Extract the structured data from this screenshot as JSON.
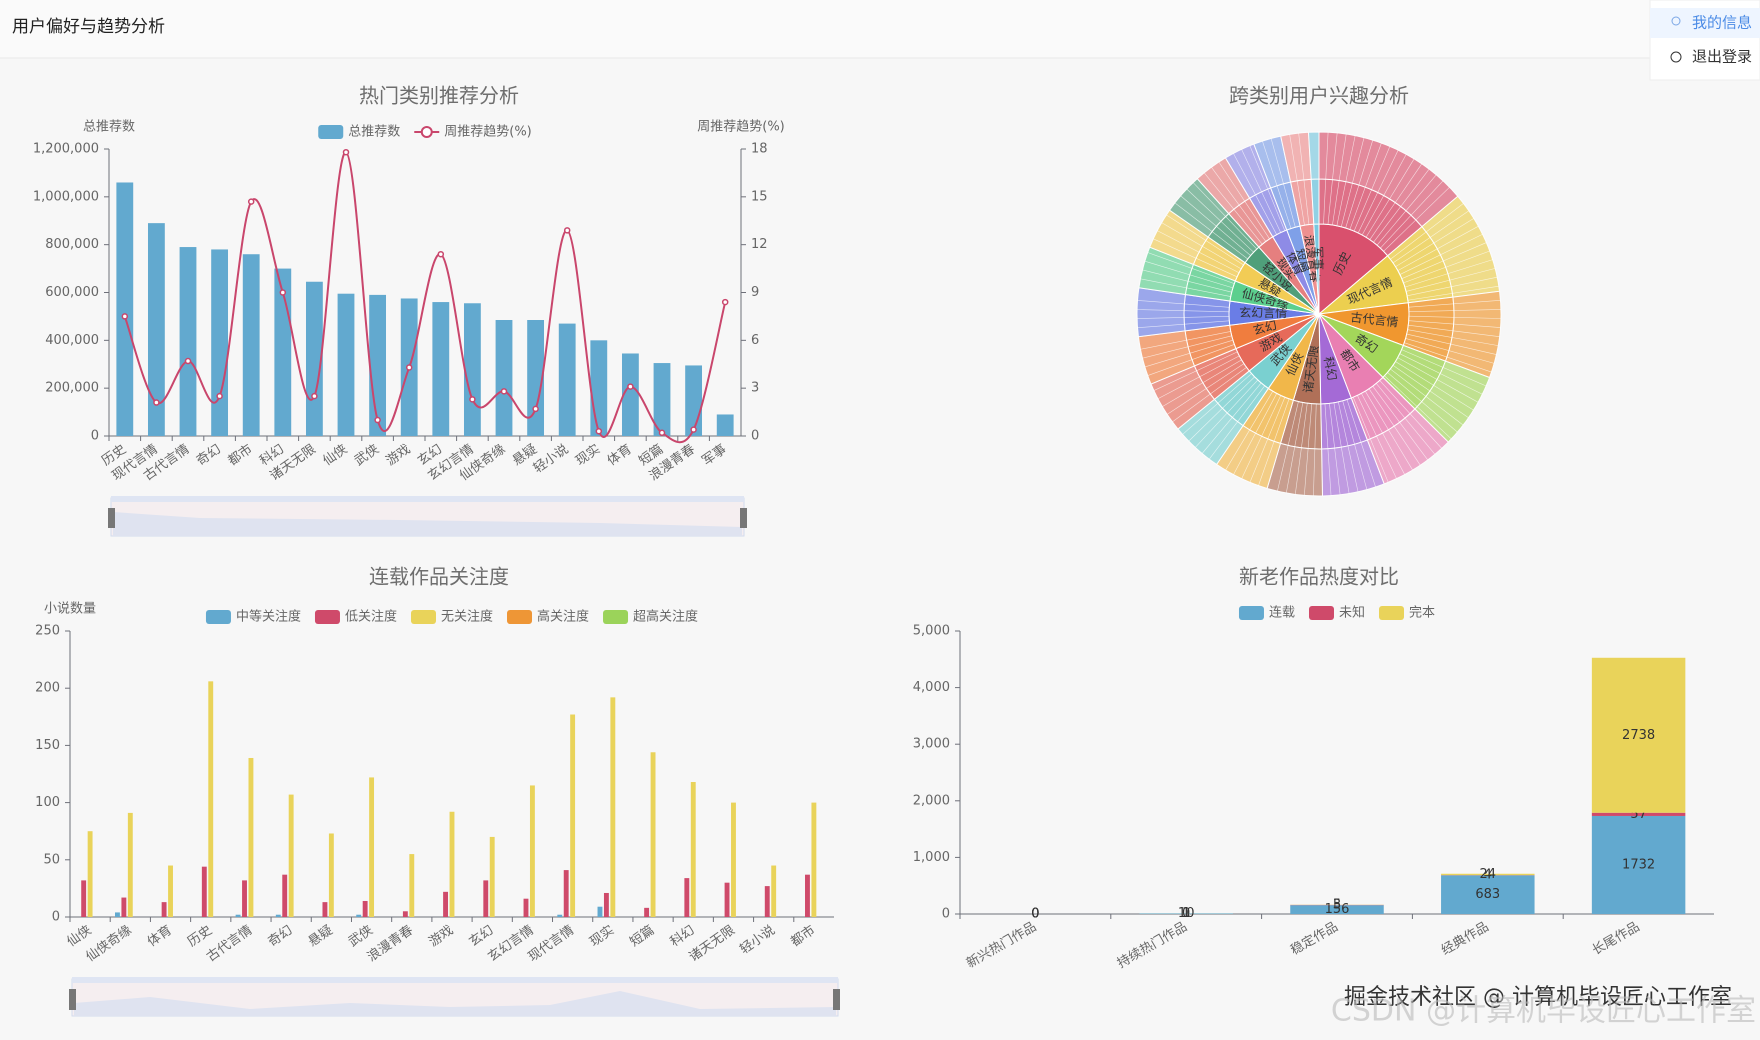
{
  "header": {
    "title": "用户偏好与趋势分析",
    "menu": [
      "我的信息",
      "退出登录"
    ]
  },
  "chart_data": [
    {
      "type": "bar",
      "title": "热门类别推荐分析",
      "y_label": "总推荐数",
      "y2_label": "周推荐趋势(%)",
      "categories": [
        "历史",
        "现代言情",
        "古代言情",
        "奇幻",
        "都市",
        "科幻",
        "诸天无限",
        "仙侠",
        "武侠",
        "游戏",
        "玄幻",
        "玄幻言情",
        "仙侠奇缘",
        "悬疑",
        "轻小说",
        "现实",
        "体育",
        "短篇",
        "浪漫青春",
        "军事"
      ],
      "series": [
        {
          "name": "总推荐数",
          "type": "bar",
          "color": "#62a9cf",
          "values": [
            1060000,
            890000,
            790000,
            780000,
            760000,
            700000,
            645000,
            595000,
            590000,
            575000,
            560000,
            555000,
            485000,
            485000,
            470000,
            400000,
            345000,
            305000,
            295000,
            90000
          ]
        },
        {
          "name": "周推荐趋势(%)",
          "type": "line",
          "axis": "y2",
          "color": "#c9466c",
          "values": [
            7.5,
            2.1,
            4.7,
            2.5,
            14.7,
            9,
            2.5,
            17.8,
            1,
            4.3,
            11.4,
            2.3,
            2.8,
            1.7,
            12.9,
            0.3,
            3.1,
            0.2,
            0.4,
            8.4
          ]
        }
      ],
      "ylim": [
        0,
        1200000
      ],
      "yticks": [
        0,
        {
          "value": 200000,
          "label": "200,000"
        },
        {
          "value": 400000,
          "label": "400,000"
        },
        {
          "value": 600000,
          "label": "600,000"
        },
        {
          "value": 800000,
          "label": "800,000"
        },
        {
          "value": 1000000,
          "label": "1,000,000"
        },
        {
          "value": 1200000,
          "label": "1,200,000"
        }
      ],
      "y2lim": [
        0,
        18
      ],
      "y2ticks": [
        0,
        3,
        6,
        9,
        12,
        15,
        18
      ],
      "grid": false
    },
    {
      "type": "sunburst",
      "title": "跨类别用户兴趣分析",
      "categories": [
        "历史",
        "现代言情",
        "古代言情",
        "奇幻",
        "都市",
        "科幻",
        "诸天无限",
        "仙侠",
        "武侠",
        "游戏",
        "玄幻",
        "玄幻言情",
        "仙侠奇缘",
        "悬疑",
        "轻小说",
        "现实",
        "体育",
        "短篇",
        "浪漫青春",
        "军事"
      ],
      "values": [
        45,
        30,
        25,
        22,
        22,
        18,
        16,
        16,
        15,
        15,
        14,
        14,
        12,
        12,
        12,
        10,
        9,
        8,
        8,
        3
      ],
      "colors": [
        "#d9506d",
        "#eccf4f",
        "#f0972f",
        "#a3d65a",
        "#e97fb2",
        "#a46ad6",
        "#b07058",
        "#f1b74a",
        "#7ad0d0",
        "#e66a5a",
        "#f07d3e",
        "#6a7de6",
        "#5ccf8e",
        "#f2cc55",
        "#4f9f7a",
        "#e57f7f",
        "#8e8be6",
        "#7fa0e8",
        "#ee9090",
        "#78c8e0"
      ]
    },
    {
      "type": "bar",
      "title": "连载作品关注度",
      "y_label": "小说数量",
      "categories": [
        "仙侠",
        "仙侠奇缘",
        "体育",
        "历史",
        "古代言情",
        "奇幻",
        "悬疑",
        "武侠",
        "浪漫青春",
        "游戏",
        "玄幻",
        "玄幻言情",
        "现代言情",
        "现实",
        "短篇",
        "科幻",
        "诸天无限",
        "轻小说",
        "都市"
      ],
      "series": [
        {
          "name": "中等关注度",
          "type": "bar",
          "color": "#62a9cf",
          "values": [
            0,
            4,
            0,
            0,
            2,
            2,
            0,
            2,
            0,
            0,
            0,
            0,
            2,
            9,
            0,
            0,
            0,
            0,
            0
          ]
        },
        {
          "name": "低关注度",
          "type": "bar",
          "color": "#cf4a6a",
          "values": [
            32,
            17,
            13,
            44,
            32,
            37,
            13,
            14,
            5,
            22,
            32,
            16,
            41,
            21,
            8,
            34,
            30,
            27,
            37
          ]
        },
        {
          "name": "无关注度",
          "type": "bar",
          "color": "#e9d35a",
          "values": [
            75,
            91,
            45,
            206,
            139,
            107,
            73,
            122,
            55,
            92,
            70,
            115,
            177,
            192,
            144,
            118,
            100,
            45,
            100
          ]
        },
        {
          "name": "高关注度",
          "type": "bar",
          "color": "#ee9636",
          "values": [
            0,
            0,
            0,
            0,
            0,
            0,
            0,
            0,
            0,
            0,
            0,
            0,
            0,
            0,
            0,
            0,
            0,
            0,
            0
          ]
        },
        {
          "name": "超高关注度",
          "type": "bar",
          "color": "#9bd35a",
          "values": [
            0,
            0,
            0,
            0,
            0,
            0,
            0,
            0,
            0,
            0,
            0,
            0,
            0,
            0,
            0,
            0,
            0,
            0,
            0
          ]
        }
      ],
      "ylim": [
        0,
        250
      ],
      "yticks": [
        0,
        50,
        100,
        150,
        200,
        250
      ],
      "grid": false
    },
    {
      "type": "stacked_bar",
      "title": "新老作品热度对比",
      "categories": [
        "新兴热门作品",
        "持续热门作品",
        "稳定作品",
        "经典作品",
        "长尾作品"
      ],
      "series": [
        {
          "name": "连载",
          "color": "#62a9cf",
          "values": [
            0,
            10,
            156,
            683,
            1732
          ]
        },
        {
          "name": "未知",
          "color": "#cf4a6a",
          "values": [
            0,
            0,
            5,
            4,
            57
          ]
        },
        {
          "name": "完本",
          "color": "#e9d35a",
          "values": [
            0,
            1,
            3,
            24,
            2738
          ]
        }
      ],
      "ylim": [
        0,
        5000
      ],
      "yticks": [
        0,
        {
          "value": 1000,
          "label": "1,000"
        },
        {
          "value": 2000,
          "label": "2,000"
        },
        {
          "value": 3000,
          "label": "3,000"
        },
        {
          "value": 4000,
          "label": "4,000"
        },
        {
          "value": 5000,
          "label": "5,000"
        }
      ],
      "grid": false,
      "data_labels": true
    }
  ],
  "watermark": [
    "掘金技术社区 @ 计算机毕设匠心工作室",
    "CSDN @计算机毕设匠心工作室"
  ]
}
